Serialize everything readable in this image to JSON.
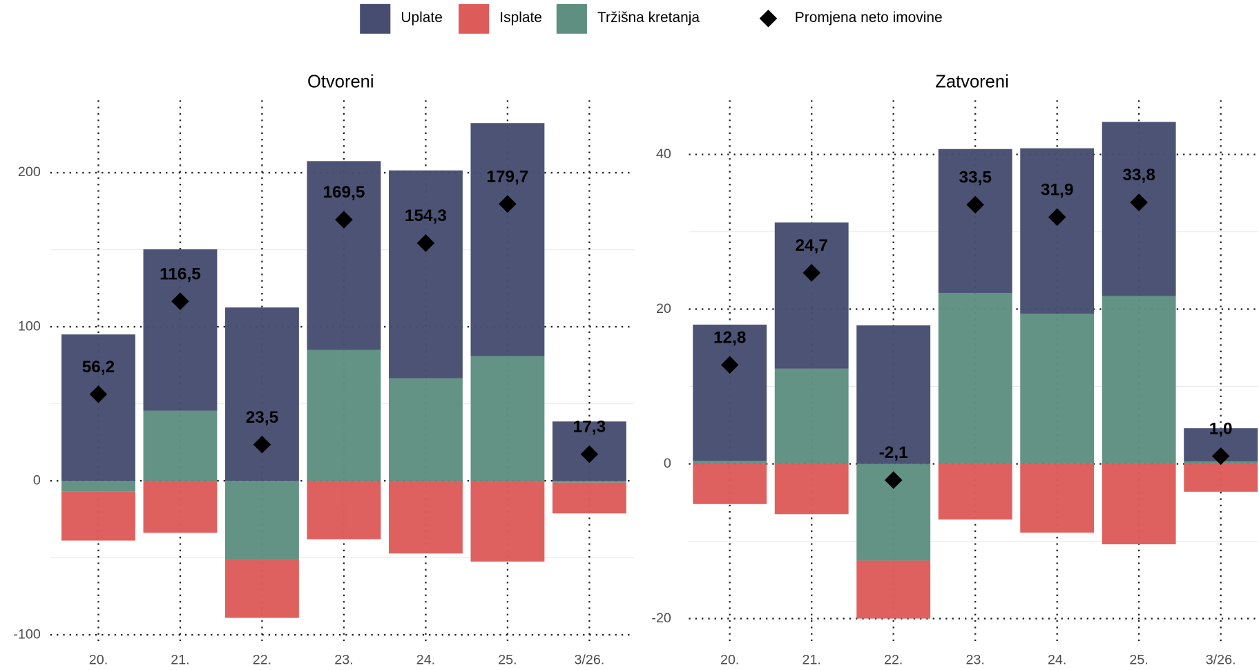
{
  "chart_data": [
    {
      "type": "bar",
      "stacked": true,
      "title": "Otvoreni",
      "legend": "top",
      "categories": [
        "20.",
        "21.",
        "22.",
        "23.",
        "24.",
        "25.",
        "3/26."
      ],
      "ylim": [
        -102,
        247
      ],
      "yticks": [
        -100,
        0,
        100,
        200
      ],
      "minor_grid": [
        -50,
        50,
        150
      ],
      "series": [
        {
          "name": "Uplate",
          "color": "#464d70",
          "values": [
            95,
            104.8,
            112.5,
            122.5,
            135,
            151.2,
            38.5
          ]
        },
        {
          "name": "Isplate",
          "color": "#dd5c5a",
          "values": [
            -32,
            -33.8,
            -37.5,
            -38,
            -47.2,
            -52.5,
            -20
          ]
        },
        {
          "name": "Tržišna kretanja",
          "color": "#5e8f80",
          "values": [
            -6.8,
            45.5,
            -51.5,
            85,
            66.5,
            81,
            -1.2
          ]
        },
        {
          "name": "Promjena neto imovine",
          "type": "diamond",
          "color": "#000000",
          "values": [
            56.2,
            116.5,
            23.5,
            169.5,
            154.3,
            179.7,
            17.3
          ],
          "value_labels": [
            "56,2",
            "116,5",
            "23,5",
            "169,5",
            "154,3",
            "179,7",
            "17,3"
          ]
        }
      ]
    },
    {
      "type": "bar",
      "stacked": true,
      "title": "Zatvoreni",
      "categories": [
        "20.",
        "21.",
        "22.",
        "23.",
        "24.",
        "25.",
        "3/26."
      ],
      "ylim": [
        -22.5,
        47
      ],
      "yticks": [
        -20,
        0,
        20,
        40
      ],
      "minor_grid": [
        -10,
        10,
        30
      ],
      "series": [
        {
          "name": "Uplate",
          "color": "#464d70",
          "values": [
            17.6,
            18.9,
            17.9,
            18.6,
            21.4,
            22.5,
            4.3
          ]
        },
        {
          "name": "Isplate",
          "color": "#dd5c5a",
          "values": [
            -5.2,
            -6.5,
            -7.5,
            -7.2,
            -8.9,
            -10.4,
            -3.6
          ]
        },
        {
          "name": "Tržišna kretanja",
          "color": "#5e8f80",
          "values": [
            0.4,
            12.3,
            -12.5,
            22.1,
            19.4,
            21.7,
            0.3
          ]
        },
        {
          "name": "Promjena neto imovine",
          "type": "diamond",
          "color": "#000000",
          "values": [
            12.8,
            24.7,
            -2.1,
            33.5,
            31.9,
            33.8,
            1.0
          ],
          "value_labels": [
            "12,8",
            "24,7",
            "-2,1",
            "33,5",
            "31,9",
            "33,8",
            "1,0"
          ]
        }
      ]
    }
  ]
}
